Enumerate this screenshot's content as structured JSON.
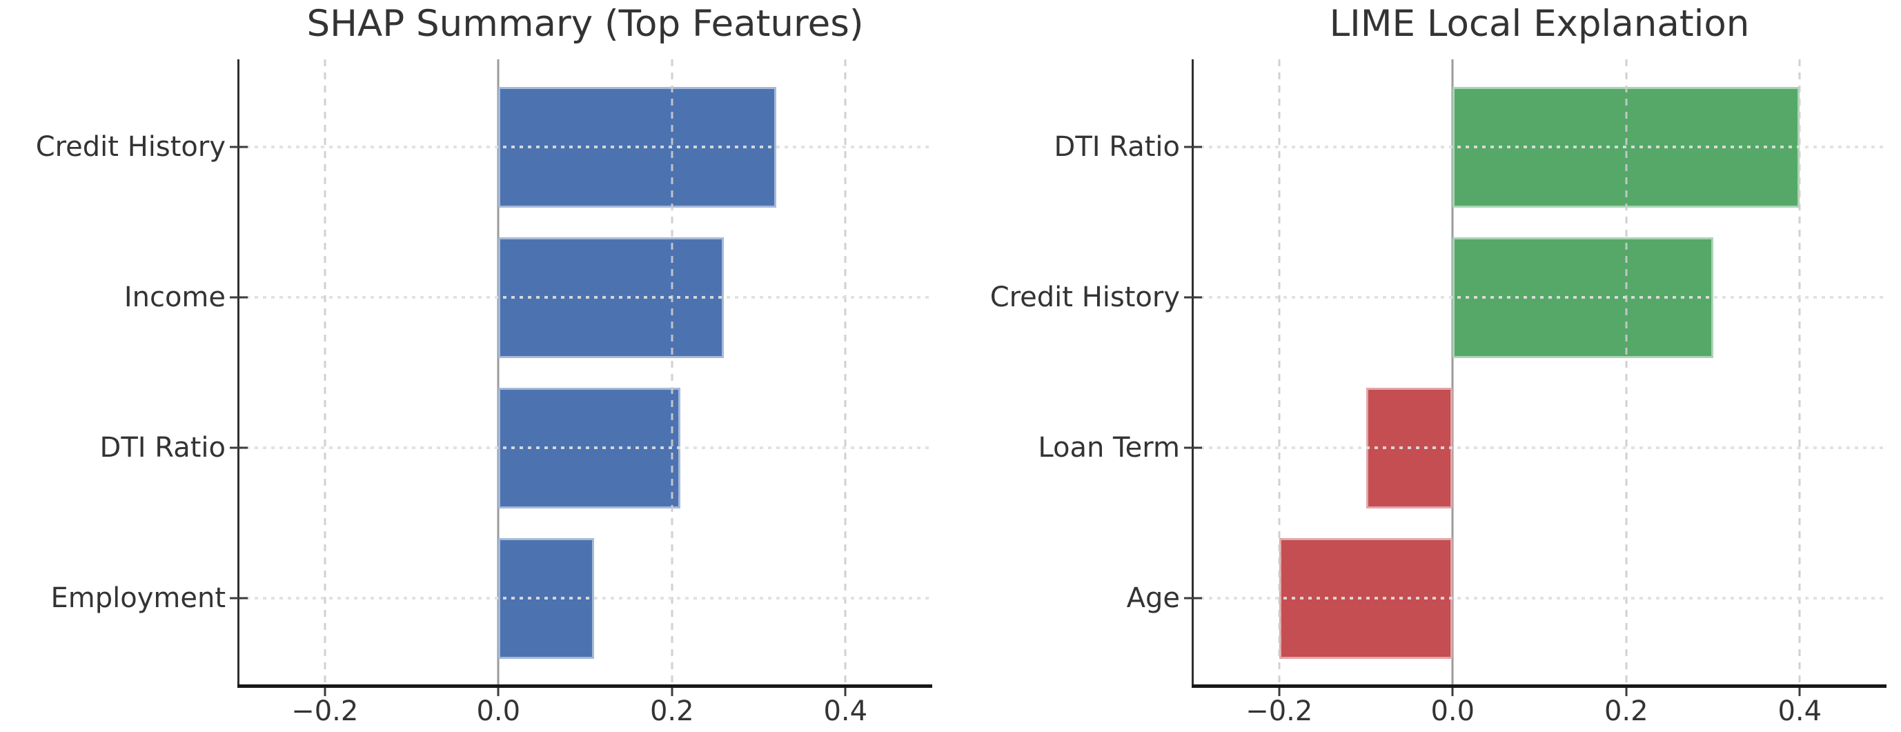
{
  "figure": {
    "background": "#ffffff"
  },
  "colors": {
    "shap_bar": "#4c72b0",
    "lime_positive": "#55a868",
    "lime_negative": "#c44e52",
    "zero_line": "#9b9b9b",
    "grid_line": "#d9d9d9",
    "axis_spine_left": "#2f2f2f",
    "axis_spine_bottom": "#171717",
    "text": "#333333"
  },
  "chart_data": [
    {
      "type": "bar",
      "orientation": "horizontal",
      "title": "SHAP Summary (Top Features)",
      "categories": [
        "Credit History",
        "Income",
        "DTI Ratio",
        "Employment"
      ],
      "values": [
        0.32,
        0.26,
        0.21,
        0.11
      ],
      "bar_colors": [
        "#4c72b0",
        "#4c72b0",
        "#4c72b0",
        "#4c72b0"
      ],
      "xlabel": "",
      "ylabel": "",
      "xlim": [
        -0.3,
        0.5
      ],
      "x_ticks": [
        -0.2,
        0.0,
        0.2,
        0.4
      ],
      "x_tick_labels": [
        "−0.2",
        "0.0",
        "0.2",
        "0.4"
      ],
      "grid": "vertical dashed + horizontal dotted, drawn over bars",
      "zero_line": true,
      "legend": "none"
    },
    {
      "type": "bar",
      "orientation": "horizontal",
      "title": "LIME Local Explanation",
      "categories": [
        "DTI Ratio",
        "Credit History",
        "Loan Term",
        "Age"
      ],
      "values": [
        0.4,
        0.3,
        -0.1,
        -0.2
      ],
      "bar_colors": [
        "#55a868",
        "#55a868",
        "#c44e52",
        "#c44e52"
      ],
      "xlabel": "",
      "ylabel": "",
      "xlim": [
        -0.3,
        0.5
      ],
      "x_ticks": [
        -0.2,
        0.0,
        0.2,
        0.4
      ],
      "x_tick_labels": [
        "−0.2",
        "0.0",
        "0.2",
        "0.4"
      ],
      "grid": "vertical dashed + horizontal dotted, drawn over bars",
      "zero_line": true,
      "legend": "none"
    }
  ]
}
